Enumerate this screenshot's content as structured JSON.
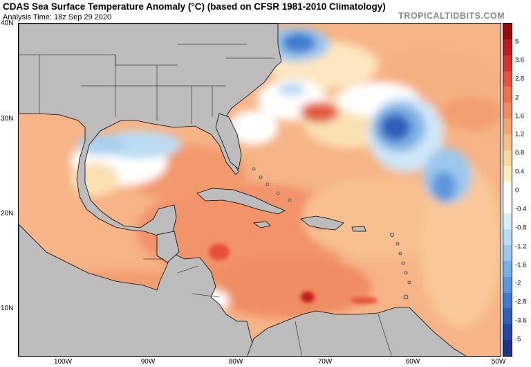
{
  "header": {
    "title": "CDAS Sea Surface Temperature Anomaly (°C) (based on CFSR 1981-2010 Climatology)",
    "analysis_time": "Analysis Time: 18z Sep 29 2020",
    "brand": "TROPICALTIDBITS.COM"
  },
  "map": {
    "lat_labels": [
      "40N",
      "30N",
      "20N",
      "10N"
    ],
    "lon_labels": [
      "100W",
      "90W",
      "80W",
      "70W",
      "60W",
      "50W"
    ],
    "land_color": "#bdbdbd"
  },
  "colorbar": {
    "labels": [
      "5",
      "3.6",
      "2.8",
      "2",
      "1.6",
      "1.2",
      "0.8",
      "0.4",
      "0",
      "-0.4",
      "-0.8",
      "-1.2",
      "-1.6",
      "-2",
      "-2.8",
      "-3.6",
      "-5"
    ],
    "colors": [
      "#9e0a0a",
      "#c21a1a",
      "#d8322c",
      "#e8503a",
      "#f0704a",
      "#f48c5a",
      "#f6a86c",
      "#f8c080",
      "#fbd99a",
      "#fdf0b8",
      "#ffffff",
      "#ffffff",
      "#d8eefa",
      "#b8dcf4",
      "#98c8ee",
      "#78b0e6",
      "#5a96dc",
      "#3e7acf",
      "#2e60bc",
      "#2248a4",
      "#1a3482"
    ]
  }
}
